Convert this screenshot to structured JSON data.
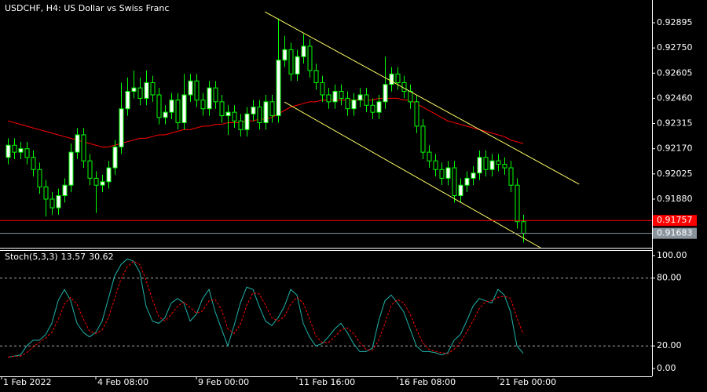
{
  "chart_data": [
    {
      "type": "candlestick",
      "title": "USDCHF, H4:  US Dollar vs Swiss Franc",
      "categories": [
        "1 Feb 2022",
        null,
        null,
        null,
        null,
        null,
        null,
        null,
        null,
        null,
        null,
        null,
        null,
        null,
        null,
        "4 Feb 08:00",
        null,
        null,
        null,
        null,
        null,
        null,
        null,
        null,
        null,
        null,
        null,
        null,
        null,
        null,
        null,
        "9 Feb 00:00",
        null,
        null,
        null,
        null,
        null,
        null,
        null,
        null,
        null,
        null,
        null,
        null,
        null,
        null,
        null,
        "11 Feb 16:00",
        null,
        null,
        null,
        null,
        null,
        null,
        null,
        null,
        null,
        null,
        null,
        null,
        null,
        null,
        null,
        "16 Feb 08:00",
        null,
        null,
        null,
        null,
        null,
        null,
        null,
        null,
        null,
        null,
        null,
        null,
        null,
        null,
        null,
        "21 Feb 00:00",
        null,
        null,
        null
      ],
      "candles": {
        "open": [
          0.9212,
          0.9219,
          0.9215,
          0.9217,
          0.9212,
          0.9205,
          0.9195,
          0.9188,
          0.9183,
          0.919,
          0.9196,
          0.9215,
          0.9225,
          0.921,
          0.92,
          0.9196,
          0.9198,
          0.9206,
          0.9218,
          0.924,
          0.925,
          0.9252,
          0.9246,
          0.9255,
          0.9248,
          0.9235,
          0.9238,
          0.9245,
          0.9232,
          0.9248,
          0.9256,
          0.9245,
          0.924,
          0.9252,
          0.9244,
          0.9236,
          0.9238,
          0.9233,
          0.9228,
          0.9237,
          0.9241,
          0.9232,
          0.9244,
          0.9236,
          0.9268,
          0.9274,
          0.926,
          0.927,
          0.9276,
          0.9262,
          0.9255,
          0.9248,
          0.9244,
          0.925,
          0.9246,
          0.924,
          0.9245,
          0.9248,
          0.9242,
          0.9238,
          0.9244,
          0.9254,
          0.926,
          0.9255,
          0.925,
          0.9244,
          0.923,
          0.9215,
          0.921,
          0.9205,
          0.92,
          0.9206,
          0.919,
          0.9196,
          0.92,
          0.9203,
          0.9212,
          0.9205,
          0.921,
          0.9208,
          0.9206,
          0.9196,
          0.9175
        ],
        "high": [
          0.9223,
          0.9223,
          0.9221,
          0.9221,
          0.9216,
          0.9209,
          0.9199,
          0.9192,
          0.9194,
          0.92,
          0.922,
          0.9229,
          0.9229,
          0.9214,
          0.9204,
          0.9202,
          0.921,
          0.9222,
          0.9255,
          0.9258,
          0.9262,
          0.9258,
          0.9262,
          0.9259,
          0.9252,
          0.9242,
          0.9249,
          0.9249,
          0.926,
          0.926,
          0.926,
          0.9249,
          0.9256,
          0.9256,
          0.9248,
          0.9242,
          0.9242,
          0.9237,
          0.9241,
          0.9245,
          0.9245,
          0.9248,
          0.9248,
          0.9292,
          0.9282,
          0.9278,
          0.9274,
          0.9283,
          0.928,
          0.9266,
          0.9259,
          0.9252,
          0.9254,
          0.9254,
          0.925,
          0.9249,
          0.9252,
          0.9252,
          0.9246,
          0.9248,
          0.927,
          0.9264,
          0.9264,
          0.9259,
          0.9254,
          0.9248,
          0.9234,
          0.9219,
          0.9214,
          0.9209,
          0.921,
          0.921,
          0.92,
          0.9204,
          0.9207,
          0.9216,
          0.9216,
          0.9214,
          0.9214,
          0.9212,
          0.921,
          0.92,
          0.9179
        ],
        "low": [
          0.9208,
          0.9211,
          0.9211,
          0.9208,
          0.9201,
          0.9191,
          0.9178,
          0.9179,
          0.9179,
          0.9186,
          0.9192,
          0.9211,
          0.9206,
          0.9196,
          0.918,
          0.9192,
          0.9194,
          0.9202,
          0.9214,
          0.9236,
          0.9246,
          0.9242,
          0.9242,
          0.9244,
          0.9231,
          0.9231,
          0.9234,
          0.9228,
          0.9228,
          0.9244,
          0.9241,
          0.9236,
          0.9236,
          0.924,
          0.9232,
          0.9225,
          0.9229,
          0.9224,
          0.9224,
          0.9233,
          0.9228,
          0.9228,
          0.9232,
          0.9232,
          0.9264,
          0.9256,
          0.9256,
          0.9266,
          0.9258,
          0.9251,
          0.9244,
          0.924,
          0.924,
          0.9242,
          0.9236,
          0.9236,
          0.9241,
          0.9238,
          0.9234,
          0.9234,
          0.924,
          0.925,
          0.9251,
          0.9246,
          0.924,
          0.9226,
          0.9211,
          0.9206,
          0.9201,
          0.9196,
          0.9196,
          0.9186,
          0.9186,
          0.9192,
          0.9196,
          0.9199,
          0.9201,
          0.9201,
          0.9204,
          0.9202,
          0.9192,
          0.9171,
          0.9163
        ],
        "close": [
          0.9219,
          0.9215,
          0.9217,
          0.9212,
          0.9205,
          0.9195,
          0.9188,
          0.9183,
          0.919,
          0.9196,
          0.9215,
          0.9225,
          0.921,
          0.92,
          0.9196,
          0.9198,
          0.9206,
          0.9218,
          0.924,
          0.925,
          0.9252,
          0.9246,
          0.9255,
          0.9248,
          0.9235,
          0.9238,
          0.9245,
          0.9232,
          0.9248,
          0.9256,
          0.9245,
          0.924,
          0.9252,
          0.9244,
          0.9236,
          0.9238,
          0.9233,
          0.9228,
          0.9237,
          0.9241,
          0.9232,
          0.9244,
          0.9236,
          0.9268,
          0.9274,
          0.926,
          0.927,
          0.9276,
          0.9262,
          0.9255,
          0.9248,
          0.9244,
          0.925,
          0.9246,
          0.924,
          0.9245,
          0.9248,
          0.9242,
          0.9238,
          0.9244,
          0.9254,
          0.926,
          0.9255,
          0.925,
          0.9244,
          0.923,
          0.9215,
          0.921,
          0.9205,
          0.92,
          0.9206,
          0.919,
          0.9196,
          0.92,
          0.9203,
          0.9212,
          0.9205,
          0.921,
          0.9208,
          0.9206,
          0.9196,
          0.9175,
          0.91683
        ]
      },
      "up_color": "#ffffff",
      "down_color": "#000000",
      "candle_color": "#00ff00",
      "ma": {
        "color": "#ff0000",
        "values": [
          0.9233,
          0.9232,
          0.9231,
          0.923,
          0.9229,
          0.9228,
          0.9227,
          0.9226,
          0.9225,
          0.9224,
          0.9223,
          0.9222,
          0.9221,
          0.922,
          0.9219,
          0.9218,
          0.9218,
          0.9219,
          0.922,
          0.9221,
          0.9222,
          0.9223,
          0.9223,
          0.9224,
          0.9225,
          0.9225,
          0.9226,
          0.9227,
          0.9228,
          0.9228,
          0.9229,
          0.923,
          0.923,
          0.9231,
          0.9231,
          0.9232,
          0.9232,
          0.9232,
          0.9233,
          0.9233,
          0.9234,
          0.9234,
          0.9235,
          0.9237,
          0.9239,
          0.9241,
          0.9242,
          0.9243,
          0.9244,
          0.9244,
          0.9245,
          0.9245,
          0.9245,
          0.9245,
          0.9245,
          0.9245,
          0.9245,
          0.9245,
          0.9245,
          0.9246,
          0.9246,
          0.9246,
          0.9246,
          0.9245,
          0.9245,
          0.9243,
          0.9241,
          0.9239,
          0.9237,
          0.9235,
          0.9233,
          0.9232,
          0.9231,
          0.923,
          0.9229,
          0.9228,
          0.9227,
          0.9226,
          0.9225,
          0.9224,
          0.9222,
          0.9221,
          0.922
        ]
      },
      "trendlines": [
        {
          "color": "#ffff66",
          "x": [
            40.9,
            90.9
          ],
          "y": [
            0.92958,
            0.91966
          ]
        },
        {
          "color": "#ffff66",
          "x": [
            44,
            84.75
          ],
          "y": [
            0.92439,
            0.916
          ]
        }
      ],
      "hlines": [
        {
          "value": 0.91757,
          "color": "#ff0000",
          "text_color": "#ffffff"
        },
        {
          "value": 0.91683,
          "color": "#8a949c",
          "text_color": "#ffffff"
        }
      ],
      "ylim": [
        0.916,
        0.93026
      ],
      "yticks": [
        0.92895,
        {
          "value": 0.9275,
          "label": "0.92750"
        },
        0.92605,
        {
          "value": 0.9246,
          "label": "0.92460"
        },
        0.92315,
        {
          "value": 0.9217,
          "label": "0.92170"
        },
        0.92025,
        {
          "value": 0.9188,
          "label": "0.91880"
        }
      ]
    },
    {
      "type": "line",
      "title": "Stoch(5,3,3)",
      "series": [
        {
          "color": "#20b2aa",
          "dash": false,
          "values": [
            10,
            11,
            12,
            20,
            25,
            25,
            30,
            40,
            60,
            70,
            60,
            40,
            32,
            28,
            32,
            42,
            62,
            82,
            92,
            97,
            95,
            85,
            55,
            42,
            40,
            45,
            58,
            62,
            58,
            42,
            48,
            62,
            70,
            50,
            35,
            20,
            38,
            58,
            72,
            70,
            55,
            42,
            38,
            45,
            55,
            70,
            65,
            40,
            28,
            20,
            22,
            28,
            35,
            40,
            32,
            22,
            15,
            15,
            18,
            42,
            60,
            65,
            58,
            50,
            35,
            20,
            15,
            15,
            14,
            12,
            14,
            25,
            30,
            42,
            55,
            62,
            60,
            58,
            70,
            65,
            50,
            20,
            13.57
          ]
        },
        {
          "color": "#ff0000",
          "dash": true,
          "values": [
            10,
            11,
            11,
            14,
            19,
            23,
            27,
            32,
            43,
            57,
            63,
            57,
            44,
            33,
            31,
            34,
            45,
            62,
            79,
            90,
            95,
            92,
            78,
            61,
            46,
            42,
            48,
            55,
            59,
            54,
            49,
            51,
            60,
            61,
            52,
            35,
            31,
            39,
            56,
            67,
            66,
            56,
            45,
            42,
            46,
            57,
            63,
            58,
            44,
            29,
            23,
            23,
            28,
            34,
            36,
            31,
            23,
            17,
            16,
            25,
            40,
            56,
            61,
            58,
            48,
            35,
            23,
            17,
            15,
            14,
            13,
            17,
            23,
            32,
            42,
            53,
            59,
            60,
            63,
            64,
            62,
            45,
            30.62
          ]
        }
      ],
      "ylim": [
        -6.9,
        104.8
      ],
      "yticks": [
        {
          "value": 100,
          "label": "100.00"
        },
        {
          "value": 80,
          "label": "80.00"
        },
        {
          "value": 20,
          "label": "20.00"
        },
        {
          "value": 0,
          "label": "0.00"
        }
      ],
      "grid_levels": [
        80,
        20
      ]
    }
  ]
}
